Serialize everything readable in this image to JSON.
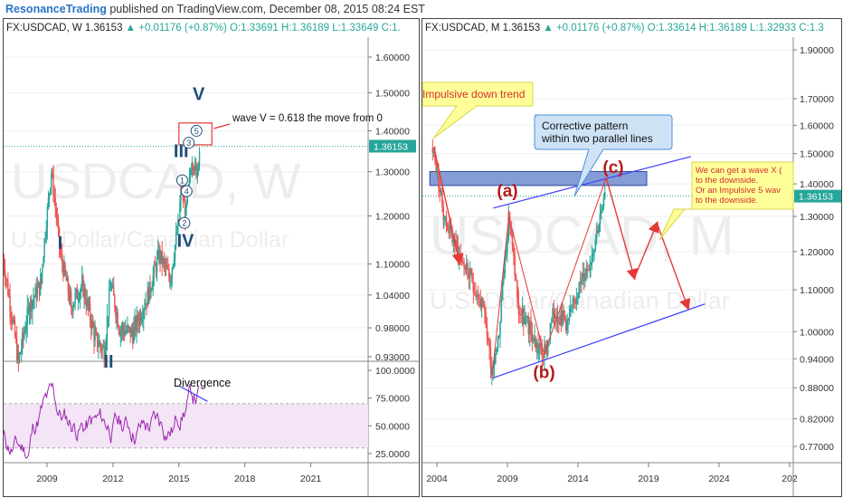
{
  "header": {
    "author": "ResonanceTrading",
    "published": "published on TradingView.com, December 08, 2015 08:24 EST"
  },
  "colors": {
    "up": "#26a69a",
    "down": "#ef5350",
    "wave_label": "#1f4e79",
    "abc_label": "#b71c1c",
    "arrow": "#e53935",
    "channel": "#3d3dff",
    "rsi": "#9c27b0",
    "price_tag": "#26a69a"
  },
  "chart_data": [
    {
      "type": "candlestick",
      "symbol": "FX:USDCAD",
      "interval": "W",
      "watermark": "USDCAD, W",
      "watermark_sub": "U.S. Dollar/Canadian Dollar",
      "legend": {
        "symbol": "FX:USDCAD, W",
        "last": "1.36153",
        "change": "+0.01176 (+0.87%)",
        "open": "O:1.33691",
        "high": "H:1.36189",
        "low": "L:1.33649",
        "close": "C:1."
      },
      "last_price": "1.36153",
      "price_axis": [
        "1.60000",
        "1.50000",
        "1.40000",
        "1.30000",
        "1.20000",
        "1.10000",
        "1.04000",
        "0.98000",
        "0.93000"
      ],
      "time_axis": [
        "2009",
        "2012",
        "2015",
        "2018",
        "2021"
      ],
      "price_path": [
        [
          2007.0,
          1.11
        ],
        [
          2007.7,
          0.92
        ],
        [
          2008.2,
          1.02
        ],
        [
          2008.7,
          1.06
        ],
        [
          2009.2,
          1.3
        ],
        [
          2009.6,
          1.12
        ],
        [
          2010.1,
          1.02
        ],
        [
          2010.6,
          1.06
        ],
        [
          2011.2,
          0.96
        ],
        [
          2011.6,
          0.94
        ],
        [
          2011.9,
          1.06
        ],
        [
          2012.3,
          0.98
        ],
        [
          2012.9,
          0.97
        ],
        [
          2013.6,
          1.04
        ],
        [
          2014.1,
          1.12
        ],
        [
          2014.6,
          1.07
        ],
        [
          2015.0,
          1.19
        ],
        [
          2015.1,
          1.27
        ],
        [
          2015.3,
          1.2
        ],
        [
          2015.6,
          1.33
        ],
        [
          2015.8,
          1.3
        ],
        [
          2015.95,
          1.36
        ]
      ],
      "wave_labels": [
        {
          "text": "I",
          "x": 2009.6,
          "y": 1.13
        },
        {
          "text": "II",
          "x": 2011.8,
          "y": 0.912
        },
        {
          "text": "III",
          "x": 2015.1,
          "y": 1.335
        },
        {
          "text": "IV",
          "x": 2015.3,
          "y": 1.135
        },
        {
          "text": "V",
          "x": 2015.9,
          "y": 1.48
        }
      ],
      "subwaves": [
        {
          "text": "1",
          "x": 2015.15,
          "y": 1.28
        },
        {
          "text": "2",
          "x": 2015.25,
          "y": 1.185
        },
        {
          "text": "3",
          "x": 2015.45,
          "y": 1.37
        },
        {
          "text": "4",
          "x": 2015.35,
          "y": 1.255
        },
        {
          "text": "5",
          "x": 2015.8,
          "y": 1.4
        }
      ],
      "target_box": {
        "x0": 2015.0,
        "x1": 2016.5,
        "y0": 1.365,
        "y1": 1.42
      },
      "target_note": "wave V = 0.618 the move from 0",
      "rsi": {
        "axis": [
          "100.0000",
          "75.0000",
          "50.0000",
          "25.0000"
        ],
        "band": [
          70,
          30
        ],
        "annotation": "Divergence",
        "divergence": [
          [
            2015.0,
            86
          ],
          [
            2016.3,
            72
          ]
        ]
      }
    },
    {
      "type": "candlestick",
      "symbol": "FX:USDCAD",
      "interval": "M",
      "watermark": "USDCAD, M",
      "watermark_sub": "U.S. Dollar/Canadian Dollar",
      "legend": {
        "symbol": "FX:USDCAD, M",
        "last": "1.36153",
        "change": "+0.01176 (+0.87%)",
        "open": "O:1.33614",
        "high": "H:1.36189",
        "low": "L:1.32933",
        "close": "C:1.3"
      },
      "last_price": "1.36153",
      "price_axis": [
        "1.90000",
        "1.70000",
        "1.60000",
        "1.50000",
        "1.40000",
        "1.30000",
        "1.20000",
        "1.10000",
        "1.00000",
        "0.94000",
        "0.88000",
        "0.82000",
        "0.77000"
      ],
      "time_axis": [
        "2004",
        "2009",
        "2014",
        "2019",
        "2024",
        "202"
      ],
      "price_path": [
        [
          2003.7,
          1.52
        ],
        [
          2004.5,
          1.3
        ],
        [
          2005.5,
          1.2
        ],
        [
          2006.5,
          1.12
        ],
        [
          2007.3,
          1.05
        ],
        [
          2007.9,
          0.92
        ],
        [
          2008.4,
          1.0
        ],
        [
          2009.1,
          1.3
        ],
        [
          2009.8,
          1.05
        ],
        [
          2010.5,
          1.01
        ],
        [
          2011.2,
          0.96
        ],
        [
          2011.7,
          0.95
        ],
        [
          2012.3,
          1.05
        ],
        [
          2013.3,
          1.02
        ],
        [
          2014.0,
          1.1
        ],
        [
          2014.9,
          1.18
        ],
        [
          2015.4,
          1.27
        ],
        [
          2015.95,
          1.36
        ]
      ],
      "abc_labels": [
        {
          "text": "(a)",
          "x": 2009.0,
          "y": 1.36
        },
        {
          "text": "(b)",
          "x": 2011.6,
          "y": 0.9
        },
        {
          "text": "(c)",
          "x": 2016.5,
          "y": 1.435
        }
      ],
      "resistance_zone": {
        "x0": 2003.5,
        "x1": 2026.0,
        "y0": 1.395,
        "y1": 1.44
      },
      "channel_upper": [
        [
          2008.0,
          1.325
        ],
        [
          2022.0,
          1.49
        ]
      ],
      "channel_lower": [
        [
          2008.0,
          0.9
        ],
        [
          2023.0,
          1.065
        ]
      ],
      "impulse_lines": [
        [
          [
            2007.9,
            0.9
          ],
          [
            2009.1,
            1.3
          ]
        ],
        [
          [
            2009.1,
            1.3
          ],
          [
            2011.6,
            0.95
          ]
        ],
        [
          [
            2011.6,
            0.95
          ],
          [
            2016.0,
            1.42
          ]
        ]
      ],
      "arrows": [
        [
          [
            2003.8,
            1.52
          ],
          [
            2005.6,
            1.17
          ]
        ],
        [
          [
            2016.0,
            1.42
          ],
          [
            2018.0,
            1.13
          ]
        ],
        [
          [
            2018.0,
            1.13
          ],
          [
            2019.6,
            1.28
          ]
        ],
        [
          [
            2019.6,
            1.28
          ],
          [
            2021.8,
            1.055
          ]
        ]
      ],
      "callouts": [
        {
          "text": "Impulsive down trend",
          "x": 2003.5,
          "y": 1.79,
          "color": "#d32f2f"
        },
        {
          "text": "Corrective pattern\nwithin two parallel lines",
          "x": 2011.3,
          "y": 1.58,
          "color": "#111"
        },
        {
          "text": "We can get a wave X (\nto the downside.\nOr an Impulsive 5 wav\n to the downside.",
          "x": 2022.0,
          "y": 1.46,
          "color": "#d32f2f"
        }
      ]
    }
  ]
}
